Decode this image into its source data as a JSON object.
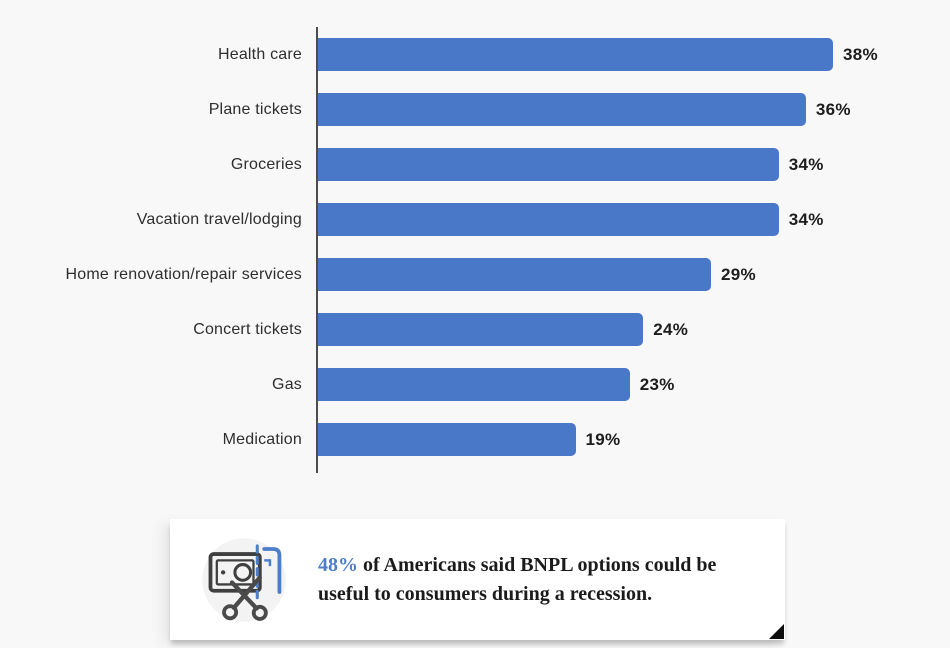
{
  "chart_data": {
    "type": "bar",
    "orientation": "horizontal",
    "categories": [
      "Health care",
      "Plane tickets",
      "Groceries",
      "Vacation travel/lodging",
      "Home renovation/repair services",
      "Concert tickets",
      "Gas",
      "Medication"
    ],
    "values": [
      38,
      36,
      34,
      34,
      29,
      24,
      23,
      19
    ],
    "value_suffix": "%",
    "title": "",
    "xlabel": "",
    "ylabel": "",
    "xlim": [
      0,
      40
    ],
    "grid": false,
    "legend": false,
    "bar_color": "#4a78c8",
    "axis_color": "#4d4d4d",
    "label_color": "#2e2e2e",
    "value_color": "#1d1d1d"
  },
  "callout": {
    "highlight": "48%",
    "text_rest": " of Americans said BNPL options could be useful to consumers during a recession.",
    "highlight_color": "#4d7ec9",
    "icon": "banknote-scissors-icon"
  }
}
